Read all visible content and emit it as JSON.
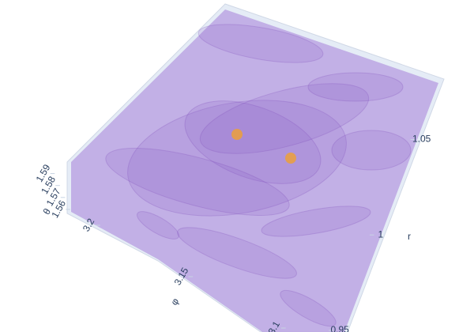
{
  "chart_data": {
    "type": "volume3d",
    "xlabel": "r",
    "xlim": [
      0.945,
      1.09
    ],
    "xticks": [
      0.95,
      1,
      1.05
    ],
    "ylabel": "φ",
    "ylim": [
      3.09,
      3.26
    ],
    "yticks": [
      3.1,
      3.15,
      3.2
    ],
    "zlabel": "θ",
    "zlim": [
      1.553,
      1.595
    ],
    "zticks": [
      1.56,
      1.57,
      1.58,
      1.59
    ],
    "color": "#8a5cc8",
    "hot_color": "#f0a030"
  }
}
